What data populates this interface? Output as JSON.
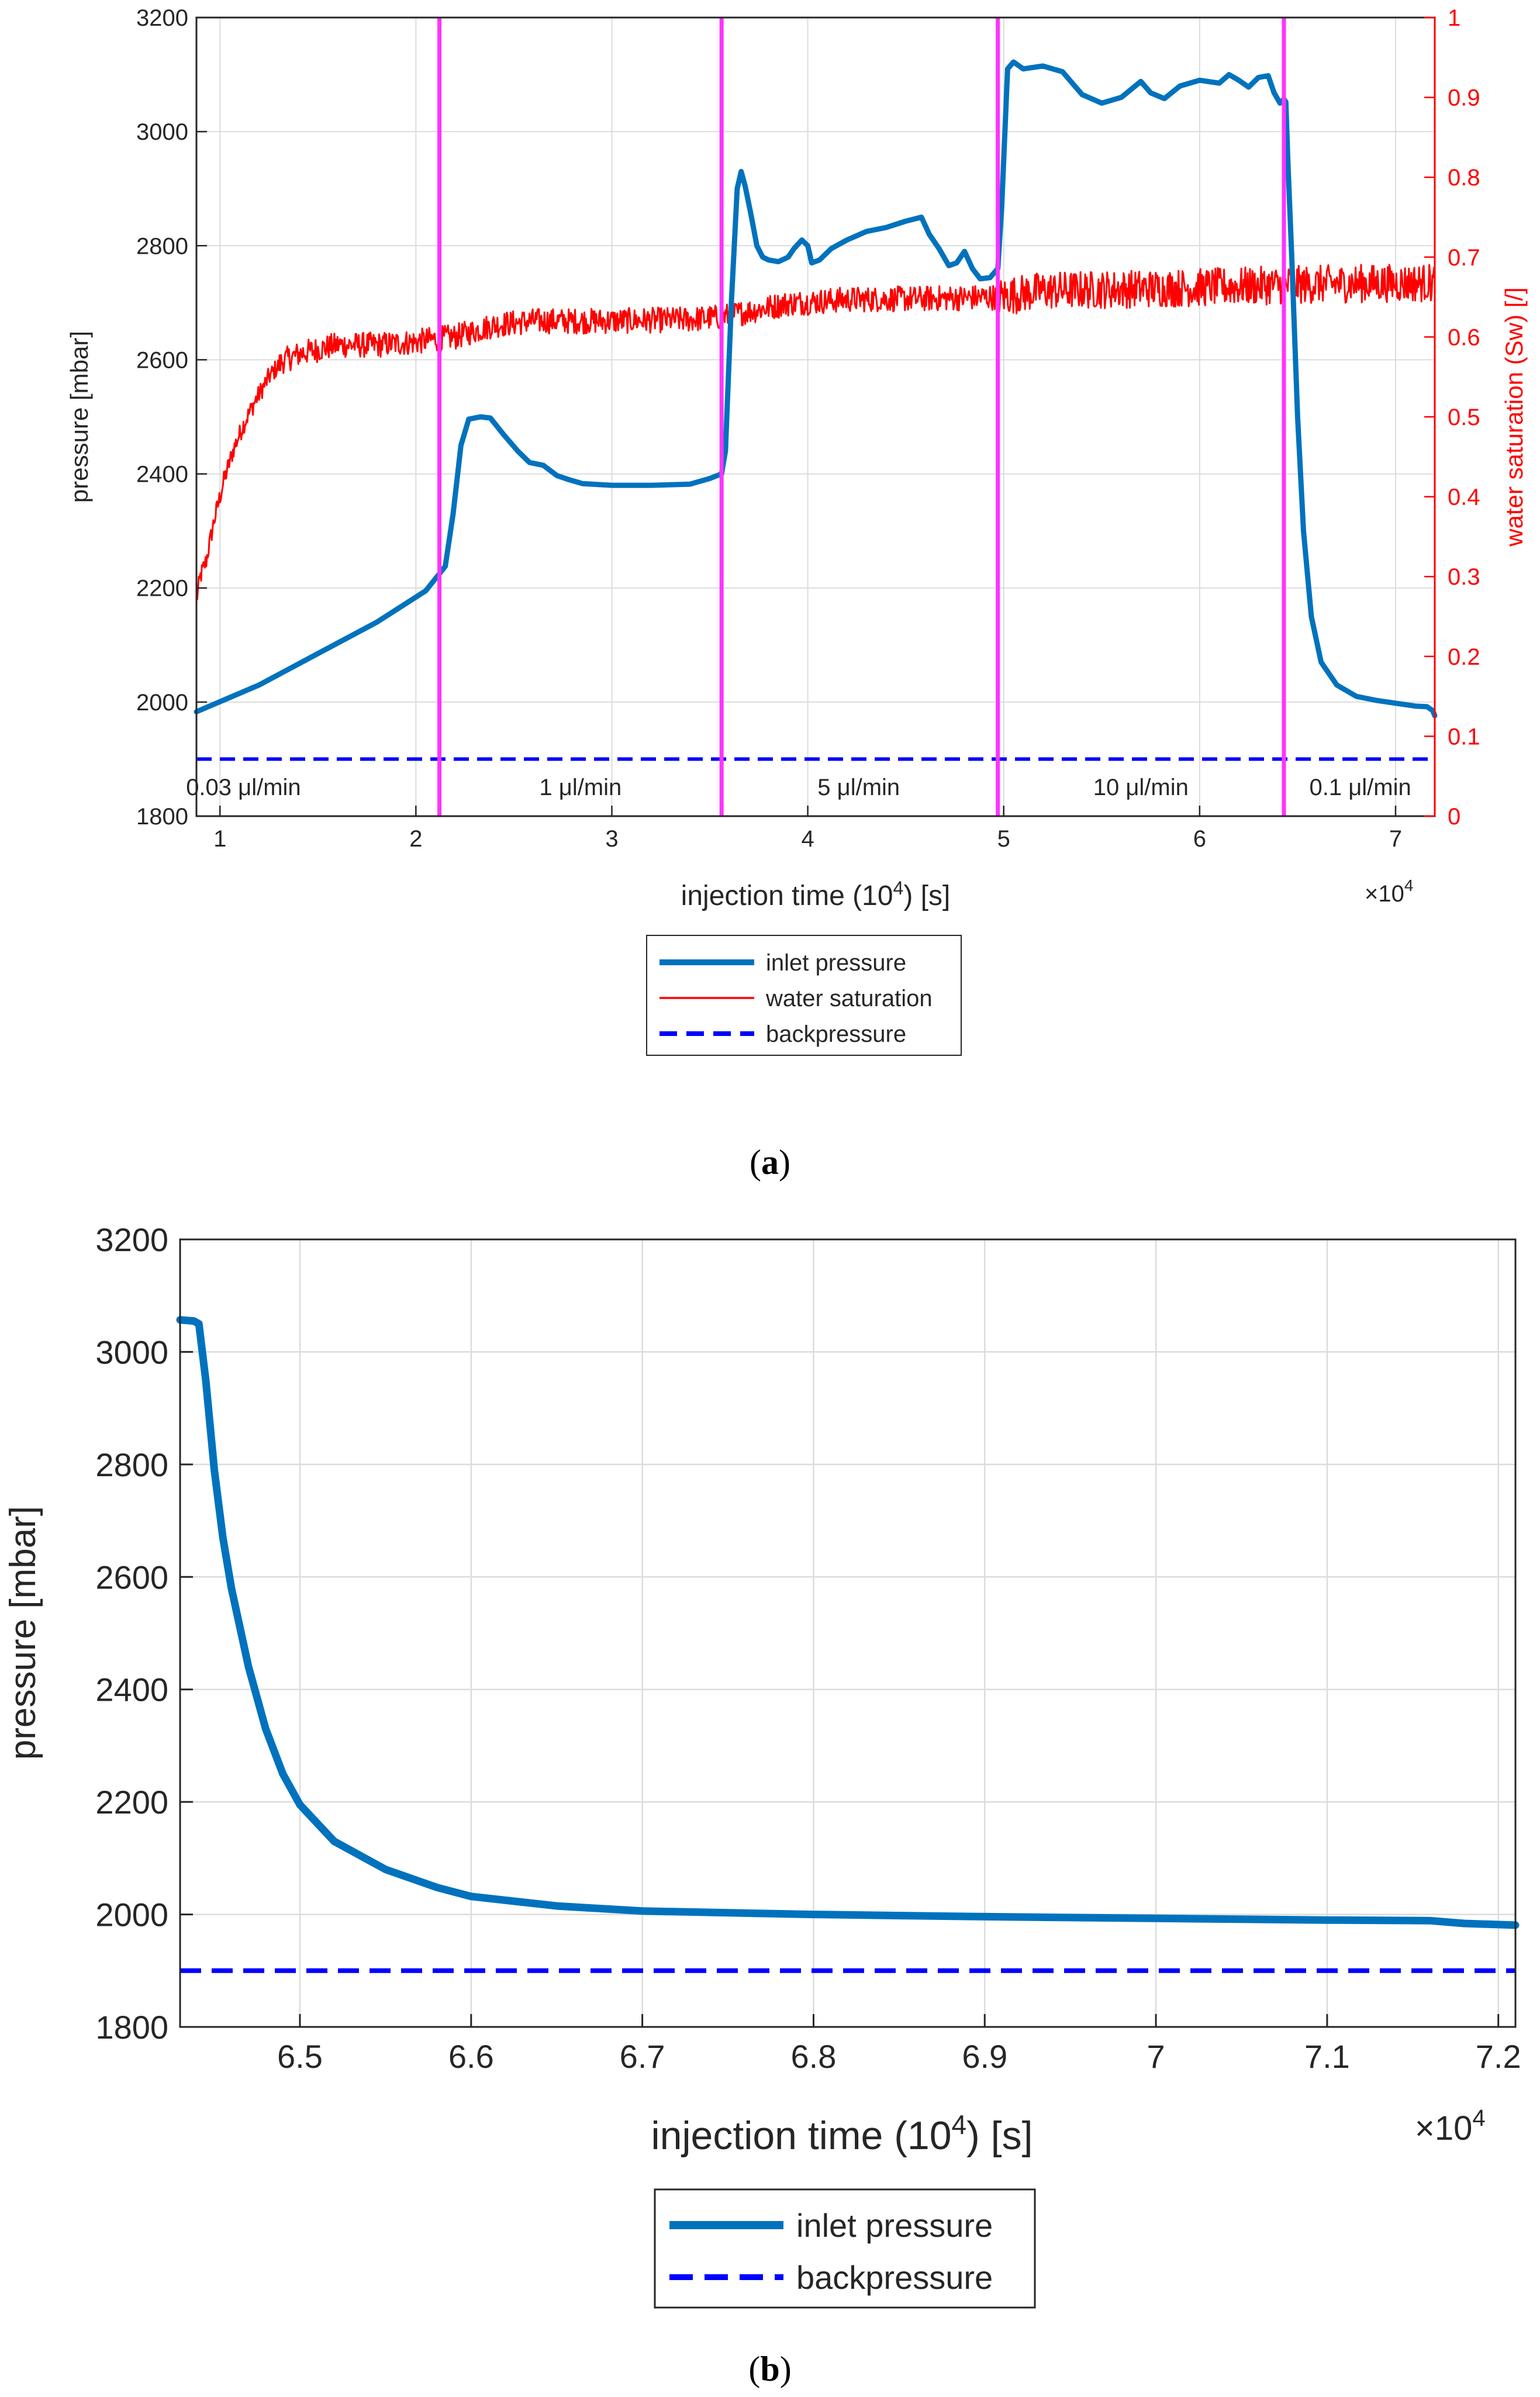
{
  "figure": {
    "panel_a_caption_letter": "a",
    "panel_b_caption_letter": "b"
  },
  "colors": {
    "inlet": "#0072BD",
    "water": "#FF0000",
    "back": "#0000FF",
    "marker": "#FF33FF",
    "grid": "#DCDCDC",
    "axis": "#262626"
  },
  "chart_data": [
    {
      "type": "line",
      "panel": "a",
      "xlabel": "injection time (10^4) [s]",
      "xlabel_parts": {
        "pre": "injection time (10",
        "sup": "4",
        "post": ") [s]"
      },
      "x_multiplier": {
        "base": "×10",
        "exp": "4"
      },
      "ylabel": "pressure [mbar]",
      "y2label": "water saturation (Sw) [/]",
      "xlim": [
        0.88,
        7.2
      ],
      "ylim": [
        1800,
        3200
      ],
      "y2lim": [
        0,
        1
      ],
      "x_ticks": [
        1,
        2,
        3,
        4,
        5,
        6,
        7
      ],
      "y_ticks": [
        1800,
        2000,
        2200,
        2400,
        2600,
        2800,
        3000,
        3200
      ],
      "y2_ticks": [
        0,
        0.1,
        0.2,
        0.3,
        0.4,
        0.5,
        0.6,
        0.7,
        0.8,
        0.9,
        1
      ],
      "grid": true,
      "legend_position": "below",
      "rate_markers": [
        2.12,
        3.56,
        4.97,
        6.43
      ],
      "flow_rates": [
        {
          "x": 1.12,
          "label": "0.03 μl/min"
        },
        {
          "x": 2.84,
          "label": "1 μl/min"
        },
        {
          "x": 4.26,
          "label": "5 μl/min"
        },
        {
          "x": 5.7,
          "label": "10 μl/min"
        },
        {
          "x": 6.82,
          "label": "0.1 μl/min"
        }
      ],
      "series": [
        {
          "name": "inlet pressure",
          "axis": "left",
          "style": "solid-thick",
          "points": [
            [
              0.88,
              1983
            ],
            [
              1.2,
              2030
            ],
            [
              1.5,
              2085
            ],
            [
              1.8,
              2140
            ],
            [
              2.05,
              2195
            ],
            [
              2.12,
              2225
            ],
            [
              2.15,
              2238
            ],
            [
              2.19,
              2330
            ],
            [
              2.23,
              2450
            ],
            [
              2.27,
              2496
            ],
            [
              2.33,
              2500
            ],
            [
              2.38,
              2498
            ],
            [
              2.45,
              2468
            ],
            [
              2.52,
              2440
            ],
            [
              2.58,
              2420
            ],
            [
              2.65,
              2415
            ],
            [
              2.72,
              2397
            ],
            [
              2.78,
              2390
            ],
            [
              2.85,
              2383
            ],
            [
              3.0,
              2380
            ],
            [
              3.2,
              2380
            ],
            [
              3.4,
              2382
            ],
            [
              3.5,
              2392
            ],
            [
              3.56,
              2400
            ],
            [
              3.58,
              2440
            ],
            [
              3.61,
              2700
            ],
            [
              3.64,
              2900
            ],
            [
              3.66,
              2930
            ],
            [
              3.68,
              2905
            ],
            [
              3.71,
              2855
            ],
            [
              3.74,
              2800
            ],
            [
              3.77,
              2780
            ],
            [
              3.8,
              2775
            ],
            [
              3.85,
              2772
            ],
            [
              3.9,
              2780
            ],
            [
              3.93,
              2795
            ],
            [
              3.97,
              2810
            ],
            [
              4.0,
              2800
            ],
            [
              4.02,
              2770
            ],
            [
              4.06,
              2775
            ],
            [
              4.12,
              2795
            ],
            [
              4.2,
              2810
            ],
            [
              4.3,
              2825
            ],
            [
              4.4,
              2832
            ],
            [
              4.5,
              2843
            ],
            [
              4.58,
              2850
            ],
            [
              4.62,
              2820
            ],
            [
              4.67,
              2795
            ],
            [
              4.72,
              2765
            ],
            [
              4.76,
              2770
            ],
            [
              4.8,
              2790
            ],
            [
              4.84,
              2760
            ],
            [
              4.88,
              2742
            ],
            [
              4.93,
              2744
            ],
            [
              4.97,
              2760
            ],
            [
              4.99,
              2870
            ],
            [
              5.02,
              3110
            ],
            [
              5.05,
              3122
            ],
            [
              5.1,
              3110
            ],
            [
              5.2,
              3115
            ],
            [
              5.3,
              3105
            ],
            [
              5.4,
              3065
            ],
            [
              5.5,
              3050
            ],
            [
              5.6,
              3060
            ],
            [
              5.7,
              3088
            ],
            [
              5.75,
              3068
            ],
            [
              5.82,
              3058
            ],
            [
              5.9,
              3080
            ],
            [
              6.0,
              3090
            ],
            [
              6.1,
              3085
            ],
            [
              6.15,
              3100
            ],
            [
              6.2,
              3090
            ],
            [
              6.25,
              3078
            ],
            [
              6.3,
              3095
            ],
            [
              6.35,
              3098
            ],
            [
              6.38,
              3068
            ],
            [
              6.41,
              3050
            ],
            [
              6.43,
              3057
            ],
            [
              6.44,
              3052
            ],
            [
              6.45,
              2950
            ],
            [
              6.47,
              2780
            ],
            [
              6.5,
              2500
            ],
            [
              6.53,
              2300
            ],
            [
              6.57,
              2150
            ],
            [
              6.62,
              2070
            ],
            [
              6.7,
              2030
            ],
            [
              6.8,
              2010
            ],
            [
              6.9,
              2003
            ],
            [
              7.0,
              1998
            ],
            [
              7.1,
              1993
            ],
            [
              7.16,
              1992
            ],
            [
              7.19,
              1985
            ],
            [
              7.2,
              1976
            ]
          ]
        },
        {
          "name": "water saturation",
          "axis": "right",
          "style": "solid-thin-noisy",
          "points": [
            [
              0.88,
              0.27
            ],
            [
              0.9,
              0.3
            ],
            [
              0.93,
              0.32
            ],
            [
              0.97,
              0.37
            ],
            [
              1.02,
              0.42
            ],
            [
              1.07,
              0.46
            ],
            [
              1.12,
              0.49
            ],
            [
              1.18,
              0.52
            ],
            [
              1.25,
              0.55
            ],
            [
              1.32,
              0.57
            ],
            [
              1.42,
              0.58
            ],
            [
              1.6,
              0.59
            ],
            [
              1.8,
              0.59
            ],
            [
              2.0,
              0.594
            ],
            [
              2.12,
              0.598
            ],
            [
              2.2,
              0.6
            ],
            [
              2.4,
              0.615
            ],
            [
              2.6,
              0.62
            ],
            [
              3.0,
              0.62
            ],
            [
              3.4,
              0.622
            ],
            [
              3.56,
              0.625
            ],
            [
              3.7,
              0.632
            ],
            [
              3.9,
              0.642
            ],
            [
              4.2,
              0.647
            ],
            [
              4.6,
              0.648
            ],
            [
              4.97,
              0.65
            ],
            [
              5.2,
              0.658
            ],
            [
              5.6,
              0.66
            ],
            [
              6.0,
              0.662
            ],
            [
              6.43,
              0.665
            ],
            [
              6.8,
              0.667
            ],
            [
              7.2,
              0.668
            ]
          ]
        },
        {
          "name": "backpressure",
          "axis": "left",
          "style": "dashed",
          "points": [
            [
              0.88,
              1900
            ],
            [
              7.2,
              1900
            ]
          ]
        }
      ]
    },
    {
      "type": "line",
      "panel": "b",
      "xlabel": "injection time (10^4) [s]",
      "xlabel_parts": {
        "pre": "injection time (10",
        "sup": "4",
        "post": ") [s]"
      },
      "x_multiplier": {
        "base": "×10",
        "exp": "4"
      },
      "ylabel": "pressure [mbar]",
      "xlim": [
        6.43,
        7.21
      ],
      "ylim": [
        1800,
        3200
      ],
      "x_ticks": [
        6.5,
        6.6,
        6.7,
        6.8,
        6.9,
        7,
        7.1,
        7.2
      ],
      "y_ticks": [
        1800,
        2000,
        2200,
        2400,
        2600,
        2800,
        3000,
        3200
      ],
      "grid": true,
      "legend_position": "below",
      "series": [
        {
          "name": "inlet pressure",
          "style": "solid-thick",
          "points": [
            [
              6.43,
              3057
            ],
            [
              6.438,
              3055
            ],
            [
              6.441,
              3050
            ],
            [
              6.445,
              2950
            ],
            [
              6.45,
              2790
            ],
            [
              6.455,
              2670
            ],
            [
              6.46,
              2580
            ],
            [
              6.47,
              2440
            ],
            [
              6.48,
              2330
            ],
            [
              6.49,
              2250
            ],
            [
              6.5,
              2195
            ],
            [
              6.52,
              2130
            ],
            [
              6.55,
              2080
            ],
            [
              6.58,
              2048
            ],
            [
              6.6,
              2032
            ],
            [
              6.65,
              2015
            ],
            [
              6.7,
              2006
            ],
            [
              6.8,
              2000
            ],
            [
              6.9,
              1996
            ],
            [
              7.0,
              1993
            ],
            [
              7.1,
              1990
            ],
            [
              7.16,
              1989
            ],
            [
              7.18,
              1984
            ],
            [
              7.21,
              1981
            ]
          ]
        },
        {
          "name": "backpressure",
          "style": "dashed",
          "points": [
            [
              6.43,
              1900
            ],
            [
              7.21,
              1900
            ]
          ]
        }
      ]
    }
  ]
}
